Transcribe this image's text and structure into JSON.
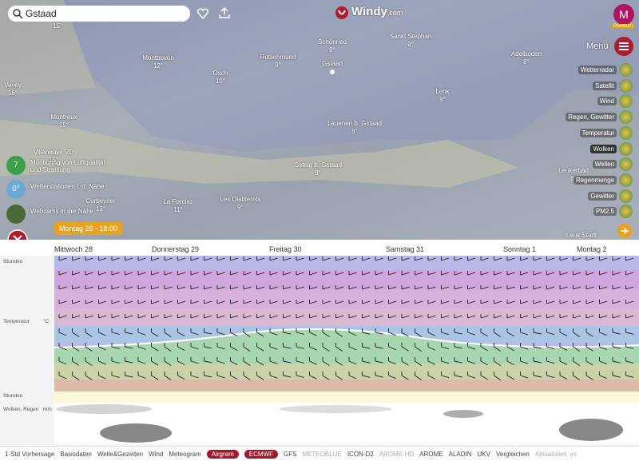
{
  "search": "Gstaad",
  "logo": {
    "name": "Windy",
    "suffix": ".com"
  },
  "user": {
    "initial": "M",
    "badge": "Premium"
  },
  "menu": "Menü",
  "places": [
    {
      "name": "Vevey",
      "temp": "16°"
    },
    {
      "name": "Montreux",
      "temp": "15°"
    },
    {
      "name": "Villeneuve VD",
      "temp": "15°"
    },
    {
      "name": "Montbovon",
      "temp": "12°"
    },
    {
      "name": "Osch",
      "temp": "10°"
    },
    {
      "name": "Rotschmund",
      "temp": "9°"
    },
    {
      "name": "Schönried",
      "temp": "9°"
    },
    {
      "name": "Gstaad",
      "temp": ""
    },
    {
      "name": "Sankt Stephan",
      "temp": "9°"
    },
    {
      "name": "Adelboden",
      "temp": "8°"
    },
    {
      "name": "Lenk",
      "temp": "9°"
    },
    {
      "name": "Lauenen b. Gstaad",
      "temp": "8°"
    },
    {
      "name": "Gsteig b. Gstaad",
      "temp": "8°"
    },
    {
      "name": "Leukerbad",
      "temp": "8°"
    },
    {
      "name": "Corbeyrier",
      "temp": "13°"
    },
    {
      "name": "La Forclaz",
      "temp": "11°"
    },
    {
      "name": "Les Diablerets",
      "temp": "9°"
    },
    {
      "name": "Leuk Stadt",
      "temp": ""
    }
  ],
  "topleft_temp": "15°",
  "layers": [
    "Wetterradar",
    "Satellit",
    "Wind",
    "Regen, Gewitter",
    "Temperatur",
    "Wolken",
    "Wellen",
    "Regenmenge",
    "Gewitter",
    "PM2.5"
  ],
  "selected_layer": "Wolken",
  "widgets": [
    {
      "icon": "7",
      "text": "Monitoring von Luftqualität und Strahlung"
    },
    {
      "icon": "0°",
      "text": "Wetterstationen i. d. Nähe"
    },
    {
      "icon": "",
      "text": "Webcams in der Nähe"
    }
  ],
  "timestamp": "Montag 26 - 18:00",
  "airgram": {
    "days": [
      "Mittwoch 28",
      "Donnerstag 29",
      "Freitag 30",
      "Samstag 31",
      "Sonntag 1",
      "Montag 2"
    ],
    "labels": {
      "hours": "Stunden",
      "temperature": "Temperatur",
      "unit": "°C",
      "hours2": "Stunden",
      "clouds": "Wolken, Regen",
      "mm": "mm"
    }
  },
  "toolbar": {
    "left": [
      "1-Std Vorhersage",
      "Basisdaten",
      "Welle&Gezeiten",
      "Wind",
      "Meteogram",
      "Airgram"
    ],
    "active": "Airgram",
    "models": [
      "ECMWF",
      "GFS",
      "METEOBLUE",
      "ICON-D2",
      "AROME-HD",
      "AROME",
      "ALADIN",
      "UKV"
    ],
    "active_model": "ECMWF",
    "compare": "Vergleichen",
    "updated": "Aktualisiert: vo"
  }
}
